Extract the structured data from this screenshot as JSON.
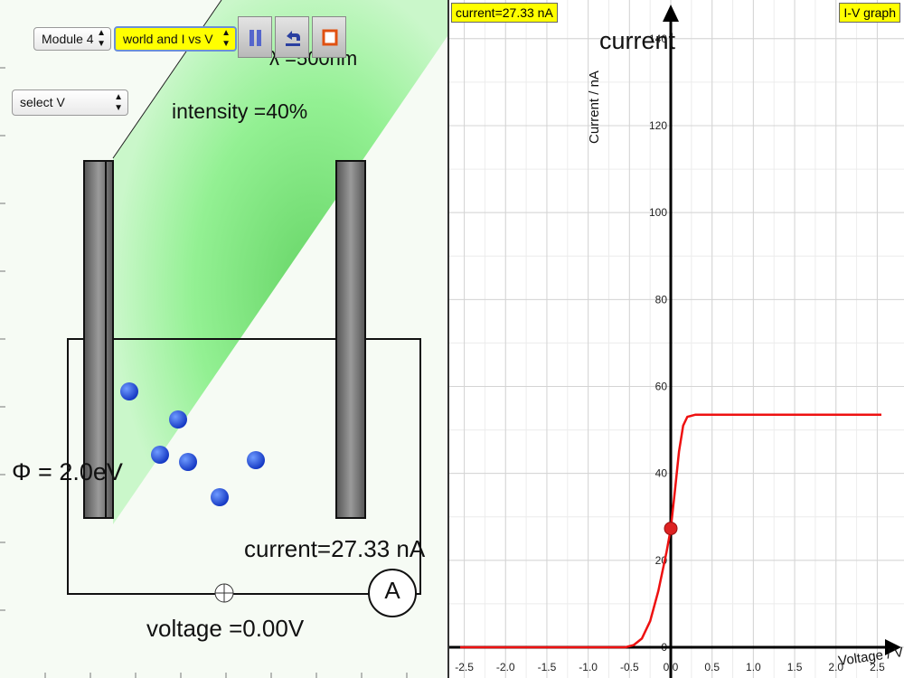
{
  "left_panel": {
    "module_select": "Module 4",
    "view_select": "world and I vs V",
    "variable_select": "select V",
    "wavelength_label": "λ =500nm",
    "intensity_label": "intensity =40%",
    "work_function_label": "Φ = 2.0eV",
    "current_label": "current=27.33 nA",
    "voltage_label": "voltage =0.00V",
    "ammeter_symbol": "A",
    "toolbar": {
      "pause_icon": "pause-icon",
      "reset_icon": "undo-icon",
      "stop_icon": "stop-icon"
    },
    "colors": {
      "light_beam": "#7ee87e",
      "electron": "#1f4fe0",
      "plate": "#777777"
    }
  },
  "right_panel": {
    "current_badge": "current=27.33 nA",
    "graph_badge": "I-V graph",
    "y_axis_title": "current",
    "y_axis_rotated_label": "Current / nA",
    "x_axis_label": "Voltage / V",
    "chart_data": {
      "type": "line",
      "title": "I-V graph",
      "xlabel": "Voltage / V",
      "ylabel": "Current / nA",
      "xlim": [
        -2.55,
        2.55
      ],
      "ylim": [
        0,
        141
      ],
      "x_ticks": [
        "-2.5",
        "-2.0",
        "-1.5",
        "-1.0",
        "-0.5",
        "0.0",
        "0.5",
        "1.0",
        "1.5",
        "2.0",
        "2.5"
      ],
      "y_ticks": [
        "0",
        "20",
        "40",
        "60",
        "80",
        "100",
        "120",
        "140"
      ],
      "grid": true,
      "series": [
        {
          "color": "#ee1111",
          "x": [
            -2.55,
            -0.55,
            -0.45,
            -0.35,
            -0.25,
            -0.15,
            -0.05,
            0.0,
            0.05,
            0.1,
            0.15,
            0.2,
            0.3,
            2.55
          ],
          "y": [
            0,
            0,
            0.5,
            2,
            6,
            13,
            22,
            27.3,
            36,
            45,
            51,
            53,
            53.5,
            53.5
          ]
        }
      ],
      "marker": {
        "x": 0.0,
        "y": 27.33,
        "color": "#dd2222"
      }
    }
  }
}
